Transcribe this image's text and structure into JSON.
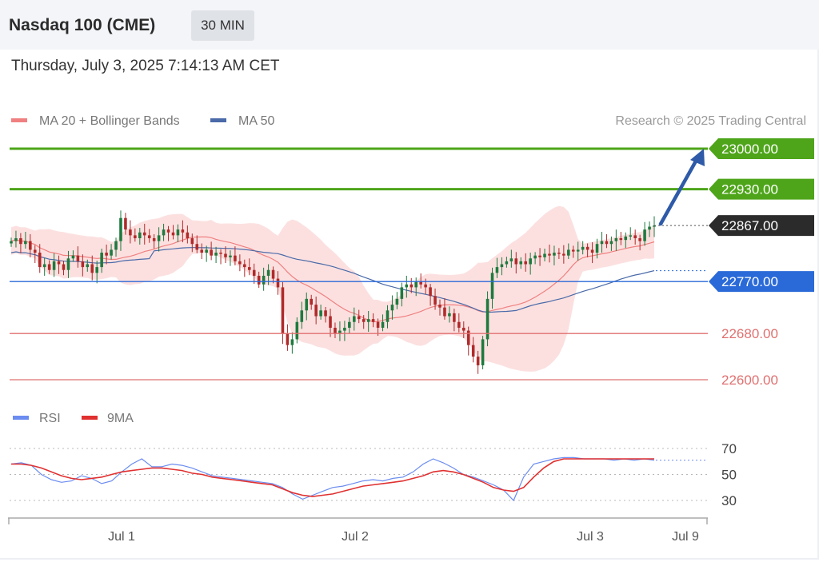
{
  "header": {
    "title": "Nasdaq 100 (CME)",
    "timeframe": "30 MIN",
    "datetime": "Thursday, July 3, 2025 7:14:13 AM CET"
  },
  "copyright": "Research © 2025 Trading Central",
  "colors": {
    "green_level": "#4ea51a",
    "blue_level": "#2a6ad8",
    "red_level": "#e07070",
    "current": "#2b2b2b",
    "ma20": "#f08080",
    "band_fill": "#fbd5d5",
    "ma50": "#4a6aa8",
    "bull": "#1e7a3e",
    "bear": "#b02a2a",
    "arrow": "#2e5aa8",
    "rsi": "#6b8cf0",
    "rsi_ma": "#e03030"
  },
  "chart_data": [
    {
      "type": "candlestick",
      "legend": [
        "MA 20 + Bollinger Bands",
        "MA 50"
      ],
      "ylim": [
        22580,
        23020
      ],
      "x_ticks": [
        "Jul 1",
        "Jul 2",
        "Jul 3",
        "Jul 9"
      ],
      "levels": [
        {
          "value": 23000,
          "label": "23000.00",
          "kind": "resistance-2"
        },
        {
          "value": 22930,
          "label": "22930.00",
          "kind": "resistance-1"
        },
        {
          "value": 22867,
          "label": "22867.00",
          "kind": "current"
        },
        {
          "value": 22770,
          "label": "22770.00",
          "kind": "pivot"
        },
        {
          "value": 22680,
          "label": "22680.00",
          "kind": "support-1"
        },
        {
          "value": 22600,
          "label": "22600.00",
          "kind": "support-2"
        }
      ],
      "close_path": [
        22840,
        22845,
        22835,
        22840,
        22825,
        22820,
        22795,
        22800,
        22790,
        22805,
        22800,
        22790,
        22810,
        22815,
        22805,
        22795,
        22800,
        22785,
        22795,
        22820,
        22815,
        22825,
        22840,
        22880,
        22860,
        22850,
        22845,
        22855,
        22850,
        22845,
        22840,
        22850,
        22860,
        22855,
        22850,
        22860,
        22855,
        22845,
        22835,
        22825,
        22820,
        22825,
        22815,
        22820,
        22818,
        22812,
        22815,
        22805,
        22800,
        22795,
        22790,
        22780,
        22765,
        22780,
        22790,
        22775,
        22760,
        22680,
        22660,
        22670,
        22700,
        22720,
        22740,
        22730,
        22710,
        22720,
        22710,
        22690,
        22680,
        22685,
        22690,
        22700,
        22710,
        22705,
        22700,
        22705,
        22700,
        22690,
        22700,
        22720,
        22730,
        22740,
        22760,
        22765,
        22760,
        22770,
        22765,
        22760,
        22745,
        22730,
        22725,
        22710,
        22715,
        22700,
        22690,
        22685,
        22660,
        22640,
        22625,
        22670,
        22740,
        22785,
        22795,
        22800,
        22805,
        22810,
        22800,
        22805,
        22800,
        22810,
        22815,
        22812,
        22818,
        22815,
        22820,
        22818,
        22815,
        22825,
        22822,
        22825,
        22830,
        22825,
        22820,
        22835,
        22840,
        22835,
        22840,
        22845,
        22842,
        22848,
        22850,
        22845,
        22840,
        22860,
        22865,
        22867
      ]
    },
    {
      "type": "line",
      "legend": [
        "RSI",
        "9MA"
      ],
      "ylim": [
        20,
        75
      ],
      "y_ticks": [
        70,
        50,
        30
      ],
      "series": [
        {
          "name": "RSI",
          "values": [
            58,
            59,
            57,
            50,
            46,
            44,
            45,
            49,
            47,
            43,
            45,
            52,
            58,
            62,
            56,
            56,
            58,
            57,
            55,
            52,
            49,
            48,
            47,
            46,
            45,
            44,
            43,
            40,
            35,
            31,
            34,
            37,
            40,
            41,
            43,
            45,
            46,
            45,
            47,
            48,
            52,
            58,
            62,
            59,
            55,
            50,
            48,
            45,
            42,
            38,
            30,
            48,
            58,
            60,
            62,
            63,
            63,
            62,
            62,
            62,
            61,
            62,
            61,
            62,
            61
          ]
        },
        {
          "name": "9MA",
          "values": [
            58,
            58,
            57,
            55,
            52,
            49,
            47,
            46,
            47,
            48,
            50,
            52,
            53,
            54,
            55,
            55,
            54,
            53,
            51,
            50,
            48,
            47,
            46,
            45,
            44,
            43,
            42,
            39,
            36,
            34,
            33,
            34,
            35,
            37,
            39,
            41,
            42,
            43,
            44,
            45,
            47,
            49,
            52,
            53,
            52,
            50,
            47,
            44,
            40,
            38,
            37,
            40,
            48,
            55,
            60,
            62,
            62,
            62,
            62,
            62,
            62,
            62,
            62,
            62,
            62
          ]
        }
      ]
    }
  ]
}
